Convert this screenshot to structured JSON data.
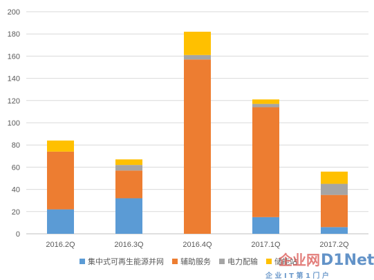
{
  "chart_data": {
    "type": "bar",
    "stacked": true,
    "categories": [
      "2016.2Q",
      "2016.3Q",
      "2016.4Q",
      "2017.1Q",
      "2017.2Q"
    ],
    "series": [
      {
        "name": "集中式可再生能源并网",
        "color": "#5b9bd5",
        "values": [
          22,
          32,
          0,
          15,
          6
        ]
      },
      {
        "name": "辅助服务",
        "color": "#ed7d31",
        "values": [
          52,
          25,
          157,
          99,
          29
        ]
      },
      {
        "name": "电力配输",
        "color": "#a5a5a5",
        "values": [
          0,
          5,
          4,
          3,
          10
        ]
      },
      {
        "name": "储能站",
        "color": "#ffc000",
        "values": [
          10,
          5,
          21,
          4,
          11
        ]
      }
    ],
    "ylim": [
      0,
      200
    ],
    "yticks": [
      0,
      20,
      40,
      60,
      80,
      100,
      120,
      140,
      160,
      180,
      200
    ],
    "grid": true,
    "legend_position": "bottom"
  },
  "watermark": {
    "text_main": "企业网",
    "text_brand": "D1Net",
    "text_sub": "企 业 I T 第 1 门 户"
  }
}
